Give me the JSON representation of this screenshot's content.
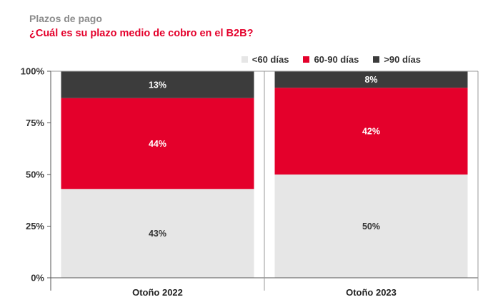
{
  "header": {
    "subtitle": "Plazos de pago",
    "title": "¿Cuál es su plazo medio de cobro en el B2B?"
  },
  "chart_data": {
    "type": "bar",
    "stacked": true,
    "categories": [
      "Otoño 2022",
      "Otoño 2023"
    ],
    "series": [
      {
        "name": "<60 días",
        "color": "#e6e6e6",
        "label_color": "#333333",
        "values": [
          43,
          50
        ],
        "labels": [
          "43%",
          "50%"
        ]
      },
      {
        "name": "60-90 días",
        "color": "#e4002b",
        "label_color": "#ffffff",
        "values": [
          44,
          42
        ],
        "labels": [
          "44%",
          "42%"
        ]
      },
      {
        "name": ">90 días",
        "color": "#3c3c3c",
        "label_color": "#ffffff",
        "values": [
          13,
          8
        ],
        "labels": [
          "13%",
          "8%"
        ]
      }
    ],
    "ylim": [
      0,
      100
    ],
    "yticks": [
      0,
      25,
      50,
      75,
      100
    ],
    "ytick_labels": [
      "0%",
      "25%",
      "50%",
      "75%",
      "100%"
    ],
    "legend_position": "top-right",
    "grid": false
  }
}
